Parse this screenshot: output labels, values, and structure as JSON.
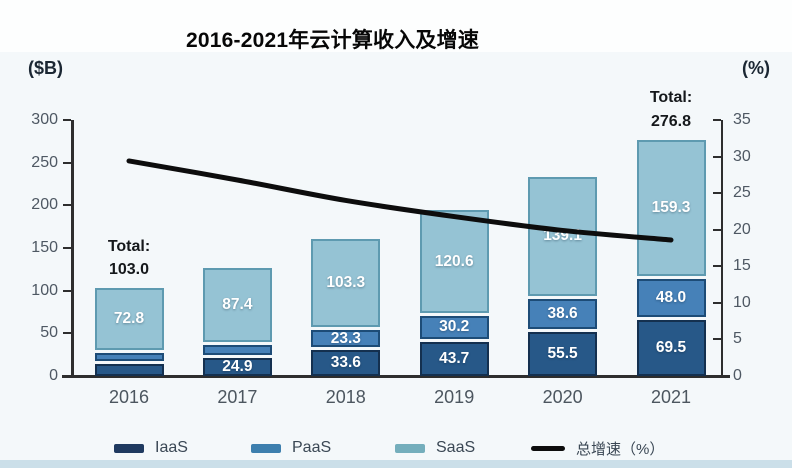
{
  "page": {
    "title": "2016-2021年云计算收入及增速",
    "left_axis_unit": "($B)",
    "right_axis_unit": "(%)"
  },
  "chart_data": {
    "type": "bar",
    "subtype": "stacked-bars-with-growth-line",
    "title": "2016-2021年云计算收入及增速",
    "categories": [
      "2016",
      "2017",
      "2018",
      "2019",
      "2020",
      "2021"
    ],
    "bar_value_unit": "$B",
    "line_value_unit": "%",
    "grid": false,
    "legend_position": "bottom",
    "left_axis": {
      "unit_label": "($B)",
      "range": [
        0,
        300
      ],
      "ticks": [
        0,
        50,
        100,
        150,
        200,
        250,
        300
      ]
    },
    "right_axis": {
      "unit_label": "(%)",
      "range": [
        0,
        35
      ],
      "ticks": [
        0,
        5,
        10,
        15,
        20,
        25,
        30,
        35
      ]
    },
    "series": [
      {
        "name": "IaaS",
        "fill": "#275888",
        "border": "#14304f",
        "values": [
          18.0,
          24.9,
          33.6,
          43.7,
          55.5,
          69.5
        ],
        "labels": [
          "",
          "24.9",
          "33.6",
          "43.7",
          "55.5",
          "69.5"
        ]
      },
      {
        "name": "PaaS",
        "fill": "#4681b8",
        "border": "#1d4c77",
        "values": [
          12.2,
          14.6,
          23.3,
          30.2,
          38.6,
          48.0
        ],
        "labels": [
          "",
          "",
          "23.3",
          "30.2",
          "38.6",
          "48.0"
        ]
      },
      {
        "name": "SaaS",
        "fill": "#95c3d4",
        "border": "#5e9ab0",
        "values": [
          72.8,
          87.4,
          103.3,
          120.6,
          139.1,
          159.3
        ],
        "labels": [
          "72.8",
          "87.4",
          "103.3",
          "120.6",
          "139.1",
          "159.3"
        ]
      }
    ],
    "totals": [
      {
        "category": "2016",
        "value": 103.0,
        "text": [
          "Total:",
          "103.0"
        ]
      },
      {
        "category": "2021",
        "value": 276.8,
        "text": [
          "Total:",
          "276.8"
        ]
      }
    ],
    "line_series": {
      "name": "总增速（%）",
      "color": "#0d0d0d",
      "values": [
        29.4,
        26.8,
        24.0,
        21.8,
        19.9,
        18.6
      ]
    },
    "legend": [
      {
        "label": "IaaS",
        "swatch": "#1f3a60",
        "type": "bar"
      },
      {
        "label": "PaaS",
        "swatch": "#3d7fae",
        "type": "bar"
      },
      {
        "label": "SaaS",
        "swatch": "#74aebc",
        "type": "bar"
      },
      {
        "label": "总增速（%）",
        "swatch": "#0d0d0d",
        "type": "line"
      }
    ]
  },
  "colors": {
    "page_bg": "#fdfefe",
    "chart_bg": "#f4f8fa",
    "axis": "#2e2e2e",
    "tick_text": "#4e5863",
    "bottom_strip": "#cbdfe9"
  }
}
